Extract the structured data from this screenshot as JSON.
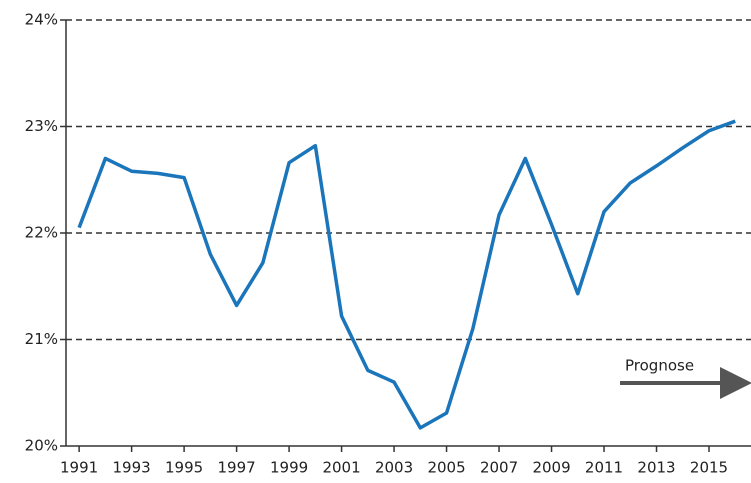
{
  "chart_data": {
    "type": "line",
    "x": [
      1991,
      1992,
      1993,
      1994,
      1995,
      1996,
      1997,
      1998,
      1999,
      2000,
      2001,
      2002,
      2003,
      2004,
      2005,
      2006,
      2007,
      2008,
      2009,
      2010,
      2011,
      2012,
      2013,
      2014,
      2015,
      2016
    ],
    "series": [
      {
        "color": "#1b75bb",
        "values": [
          22.05,
          22.7,
          22.58,
          22.56,
          22.52,
          21.8,
          21.32,
          21.72,
          22.66,
          22.82,
          21.22,
          20.71,
          20.6,
          20.17,
          20.31,
          21.1,
          22.17,
          22.7,
          22.08,
          21.43,
          22.2,
          22.47,
          22.63,
          22.8,
          22.96,
          23.05
        ]
      }
    ],
    "xlim": [
      1990.5,
      2016.6
    ],
    "xticks": [
      1991,
      1993,
      1995,
      1997,
      1999,
      2001,
      2003,
      2005,
      2007,
      2009,
      2011,
      2013,
      2015
    ],
    "ylim": [
      20,
      24
    ],
    "yticks": [
      {
        "value": 20,
        "label": "20%"
      },
      {
        "value": 21,
        "label": "21%"
      },
      {
        "value": 22,
        "label": "22%"
      },
      {
        "value": 23,
        "label": "23%"
      },
      {
        "value": 24,
        "label": "24%"
      }
    ],
    "grid": true,
    "annotation": "Prognose"
  }
}
